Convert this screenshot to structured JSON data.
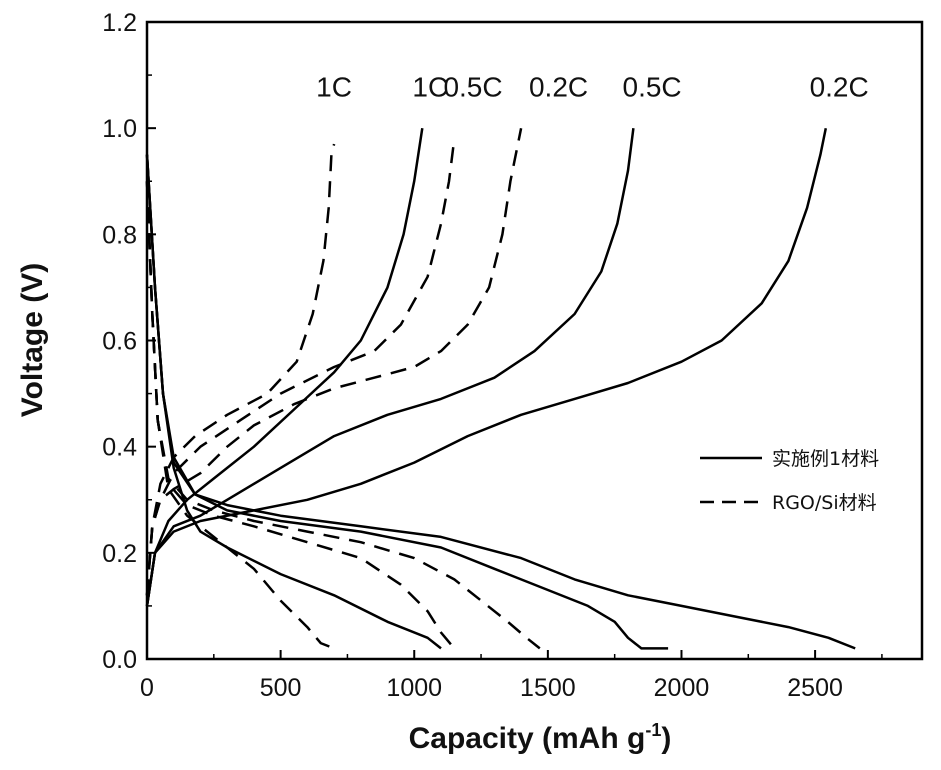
{
  "chart_data": {
    "type": "line",
    "xlabel": "Capacity (mAh g",
    "xlabel_sup": "-1",
    "xlabel_suffix": ")",
    "ylabel": "Voltage (V)",
    "xlim": [
      0,
      2900
    ],
    "ylim": [
      0,
      1.2
    ],
    "xticks": [
      0,
      500,
      1000,
      1500,
      2000,
      2500
    ],
    "xtick_labels": [
      "0",
      "500",
      "1000",
      "1500",
      "2000",
      "2500"
    ],
    "yticks": [
      0.0,
      0.2,
      0.4,
      0.6,
      0.8,
      1.0,
      1.2
    ],
    "ytick_labels": [
      "0.0",
      "0.2",
      "0.4",
      "0.6",
      "0.8",
      "1.0",
      "1.2"
    ],
    "grid": false,
    "legend_position": "right",
    "legend": [
      {
        "label": "实施例1材料",
        "style": "solid"
      },
      {
        "label": "RGO/Si材料",
        "style": "dashed"
      }
    ],
    "annotations": [
      {
        "text": "1C",
        "x": 700,
        "y": 1.06
      },
      {
        "text": "1C",
        "x": 1060,
        "y": 1.06
      },
      {
        "text": "0.5C",
        "x": 1220,
        "y": 1.06
      },
      {
        "text": "0.2C",
        "x": 1540,
        "y": 1.06
      },
      {
        "text": "0.5C",
        "x": 1890,
        "y": 1.06
      },
      {
        "text": "0.2C",
        "x": 2590,
        "y": 1.06
      }
    ],
    "series": [
      {
        "style": "solid",
        "curve": "discharge",
        "rate": "0.2C",
        "points": [
          [
            0,
            0.95
          ],
          [
            30,
            0.7
          ],
          [
            60,
            0.5
          ],
          [
            100,
            0.38
          ],
          [
            180,
            0.31
          ],
          [
            300,
            0.29
          ],
          [
            500,
            0.27
          ],
          [
            800,
            0.25
          ],
          [
            1100,
            0.23
          ],
          [
            1400,
            0.19
          ],
          [
            1600,
            0.15
          ],
          [
            1800,
            0.12
          ],
          [
            2000,
            0.1
          ],
          [
            2200,
            0.08
          ],
          [
            2400,
            0.06
          ],
          [
            2550,
            0.04
          ],
          [
            2650,
            0.02
          ]
        ]
      },
      {
        "style": "solid",
        "curve": "charge",
        "rate": "0.2C",
        "points": [
          [
            0,
            0.1
          ],
          [
            30,
            0.2
          ],
          [
            100,
            0.24
          ],
          [
            200,
            0.26
          ],
          [
            400,
            0.28
          ],
          [
            600,
            0.3
          ],
          [
            800,
            0.33
          ],
          [
            1000,
            0.37
          ],
          [
            1200,
            0.42
          ],
          [
            1400,
            0.46
          ],
          [
            1600,
            0.49
          ],
          [
            1800,
            0.52
          ],
          [
            2000,
            0.56
          ],
          [
            2150,
            0.6
          ],
          [
            2300,
            0.67
          ],
          [
            2400,
            0.75
          ],
          [
            2470,
            0.85
          ],
          [
            2520,
            0.95
          ],
          [
            2540,
            1.0
          ]
        ]
      },
      {
        "style": "solid",
        "curve": "discharge",
        "rate": "0.5C",
        "points": [
          [
            0,
            0.95
          ],
          [
            30,
            0.7
          ],
          [
            60,
            0.5
          ],
          [
            100,
            0.37
          ],
          [
            180,
            0.31
          ],
          [
            300,
            0.28
          ],
          [
            500,
            0.26
          ],
          [
            800,
            0.24
          ],
          [
            1100,
            0.21
          ],
          [
            1300,
            0.17
          ],
          [
            1500,
            0.13
          ],
          [
            1650,
            0.1
          ],
          [
            1750,
            0.07
          ],
          [
            1800,
            0.04
          ],
          [
            1850,
            0.02
          ],
          [
            1950,
            0.02
          ]
        ]
      },
      {
        "style": "solid",
        "curve": "charge",
        "rate": "0.5C",
        "points": [
          [
            0,
            0.1
          ],
          [
            30,
            0.2
          ],
          [
            100,
            0.25
          ],
          [
            200,
            0.27
          ],
          [
            300,
            0.3
          ],
          [
            500,
            0.36
          ],
          [
            700,
            0.42
          ],
          [
            900,
            0.46
          ],
          [
            1100,
            0.49
          ],
          [
            1300,
            0.53
          ],
          [
            1450,
            0.58
          ],
          [
            1600,
            0.65
          ],
          [
            1700,
            0.73
          ],
          [
            1760,
            0.82
          ],
          [
            1800,
            0.92
          ],
          [
            1820,
            1.0
          ]
        ]
      },
      {
        "style": "solid",
        "curve": "discharge",
        "rate": "1C",
        "points": [
          [
            0,
            0.95
          ],
          [
            30,
            0.7
          ],
          [
            60,
            0.5
          ],
          [
            100,
            0.36
          ],
          [
            150,
            0.28
          ],
          [
            200,
            0.24
          ],
          [
            300,
            0.21
          ],
          [
            500,
            0.16
          ],
          [
            700,
            0.12
          ],
          [
            900,
            0.07
          ],
          [
            1050,
            0.04
          ],
          [
            1100,
            0.02
          ]
        ]
      },
      {
        "style": "solid",
        "curve": "charge",
        "rate": "1C",
        "points": [
          [
            0,
            0.1
          ],
          [
            30,
            0.2
          ],
          [
            80,
            0.26
          ],
          [
            150,
            0.3
          ],
          [
            250,
            0.34
          ],
          [
            400,
            0.4
          ],
          [
            550,
            0.47
          ],
          [
            700,
            0.54
          ],
          [
            800,
            0.6
          ],
          [
            900,
            0.7
          ],
          [
            960,
            0.8
          ],
          [
            1000,
            0.9
          ],
          [
            1030,
            1.0
          ]
        ]
      },
      {
        "style": "dashed",
        "curve": "discharge",
        "rate": "0.2C",
        "points": [
          [
            0,
            0.9
          ],
          [
            20,
            0.65
          ],
          [
            40,
            0.45
          ],
          [
            80,
            0.34
          ],
          [
            150,
            0.3
          ],
          [
            250,
            0.28
          ],
          [
            400,
            0.26
          ],
          [
            600,
            0.24
          ],
          [
            800,
            0.22
          ],
          [
            1000,
            0.19
          ],
          [
            1150,
            0.15
          ],
          [
            1250,
            0.11
          ],
          [
            1350,
            0.07
          ],
          [
            1420,
            0.04
          ],
          [
            1470,
            0.02
          ]
        ]
      },
      {
        "style": "dashed",
        "curve": "charge",
        "rate": "0.2C",
        "points": [
          [
            0,
            0.12
          ],
          [
            20,
            0.25
          ],
          [
            50,
            0.3
          ],
          [
            100,
            0.32
          ],
          [
            200,
            0.35
          ],
          [
            300,
            0.4
          ],
          [
            400,
            0.44
          ],
          [
            550,
            0.48
          ],
          [
            700,
            0.51
          ],
          [
            850,
            0.53
          ],
          [
            1000,
            0.55
          ],
          [
            1100,
            0.58
          ],
          [
            1200,
            0.63
          ],
          [
            1280,
            0.7
          ],
          [
            1330,
            0.8
          ],
          [
            1360,
            0.9
          ],
          [
            1400,
            1.0
          ]
        ]
      },
      {
        "style": "dashed",
        "curve": "discharge",
        "rate": "0.5C",
        "points": [
          [
            0,
            0.9
          ],
          [
            20,
            0.65
          ],
          [
            40,
            0.45
          ],
          [
            80,
            0.33
          ],
          [
            150,
            0.29
          ],
          [
            250,
            0.27
          ],
          [
            400,
            0.25
          ],
          [
            600,
            0.22
          ],
          [
            800,
            0.19
          ],
          [
            950,
            0.14
          ],
          [
            1050,
            0.09
          ],
          [
            1100,
            0.05
          ],
          [
            1150,
            0.02
          ]
        ]
      },
      {
        "style": "dashed",
        "curve": "charge",
        "rate": "0.5C",
        "points": [
          [
            0,
            0.12
          ],
          [
            20,
            0.25
          ],
          [
            50,
            0.3
          ],
          [
            100,
            0.35
          ],
          [
            200,
            0.4
          ],
          [
            350,
            0.45
          ],
          [
            500,
            0.5
          ],
          [
            700,
            0.55
          ],
          [
            850,
            0.58
          ],
          [
            950,
            0.63
          ],
          [
            1050,
            0.72
          ],
          [
            1100,
            0.82
          ],
          [
            1130,
            0.9
          ],
          [
            1150,
            0.98
          ]
        ]
      },
      {
        "style": "dashed",
        "curve": "discharge",
        "rate": "1C",
        "points": [
          [
            0,
            0.9
          ],
          [
            20,
            0.65
          ],
          [
            40,
            0.45
          ],
          [
            80,
            0.32
          ],
          [
            150,
            0.27
          ],
          [
            250,
            0.23
          ],
          [
            400,
            0.17
          ],
          [
            500,
            0.11
          ],
          [
            600,
            0.06
          ],
          [
            650,
            0.03
          ],
          [
            700,
            0.02
          ]
        ]
      },
      {
        "style": "dashed",
        "curve": "charge",
        "rate": "1C",
        "points": [
          [
            0,
            0.12
          ],
          [
            20,
            0.25
          ],
          [
            50,
            0.33
          ],
          [
            100,
            0.38
          ],
          [
            180,
            0.42
          ],
          [
            300,
            0.46
          ],
          [
            450,
            0.5
          ],
          [
            560,
            0.56
          ],
          [
            620,
            0.65
          ],
          [
            660,
            0.75
          ],
          [
            680,
            0.85
          ],
          [
            690,
            0.95
          ],
          [
            700,
            0.97
          ]
        ]
      }
    ]
  }
}
